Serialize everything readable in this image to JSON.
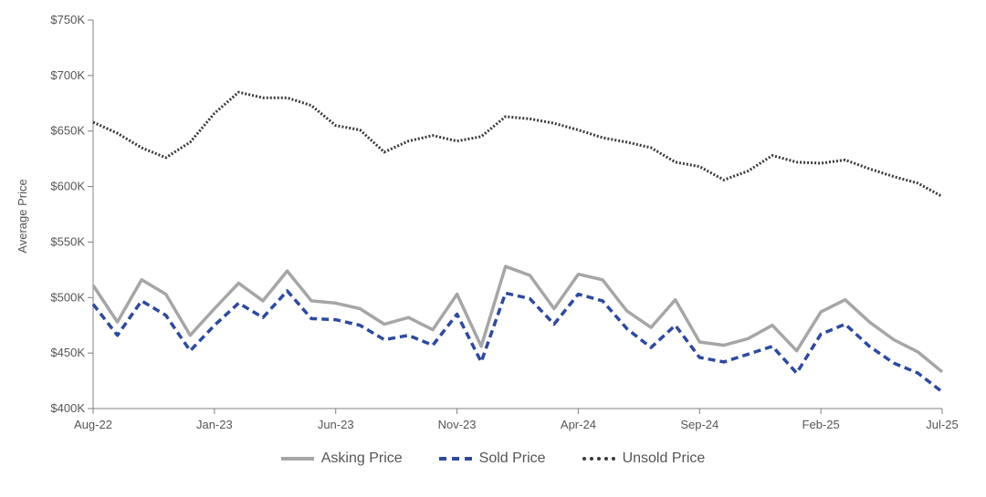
{
  "chart_data": {
    "type": "line",
    "title": "",
    "xlabel": "",
    "ylabel": "Average Price",
    "ylim": [
      400000,
      750000
    ],
    "y_ticks": [
      "$400K",
      "$450K",
      "$500K",
      "$550K",
      "$600K",
      "$650K",
      "$700K",
      "$750K"
    ],
    "y_tick_values": [
      400000,
      450000,
      500000,
      550000,
      600000,
      650000,
      700000,
      750000
    ],
    "x": [
      "Aug-22",
      "Sep-22",
      "Oct-22",
      "Nov-22",
      "Dec-22",
      "Jan-23",
      "Feb-23",
      "Mar-23",
      "Apr-23",
      "May-23",
      "Jun-23",
      "Jul-23",
      "Aug-23",
      "Sep-23",
      "Oct-23",
      "Nov-23",
      "Dec-23",
      "Jan-24",
      "Feb-24",
      "Mar-24",
      "Apr-24",
      "May-24",
      "Jun-24",
      "Jul-24",
      "Aug-24",
      "Sep-24",
      "Oct-24",
      "Nov-24",
      "Dec-24",
      "Jan-25",
      "Feb-25",
      "Mar-25",
      "Apr-25",
      "May-25",
      "Jun-25",
      "Jul-25"
    ],
    "x_tick_labels": [
      "Aug-22",
      "Jan-23",
      "Jun-23",
      "Nov-23",
      "Apr-24",
      "Sep-24",
      "Feb-25",
      "Jul-25"
    ],
    "x_tick_every": 5,
    "grid": false,
    "legend_position": "bottom",
    "series": [
      {
        "name": "Asking Price",
        "color": "#a6a6a6",
        "style": "solid",
        "values": [
          511000,
          478000,
          516000,
          503000,
          466000,
          490000,
          513000,
          497000,
          524000,
          497000,
          495000,
          490000,
          476000,
          482000,
          471000,
          503000,
          456000,
          528000,
          520000,
          490000,
          521000,
          516000,
          488000,
          473000,
          498000,
          460000,
          457000,
          463000,
          475000,
          452000,
          487000,
          498000,
          478000,
          462000,
          451000,
          433000
        ]
      },
      {
        "name": "Sold Price",
        "color": "#2e4a9e",
        "style": "dashed",
        "values": [
          494000,
          466000,
          497000,
          484000,
          452000,
          475000,
          495000,
          482000,
          506000,
          481000,
          480000,
          475000,
          462000,
          466000,
          457000,
          485000,
          442000,
          504000,
          499000,
          476000,
          503000,
          497000,
          472000,
          455000,
          475000,
          446000,
          442000,
          449000,
          456000,
          432000,
          467000,
          476000,
          456000,
          441000,
          432000,
          415000
        ]
      },
      {
        "name": "Unsold Price",
        "color": "#3a3a3a",
        "style": "dotted",
        "values": [
          658000,
          648000,
          635000,
          626000,
          640000,
          666000,
          685000,
          680000,
          680000,
          673000,
          655000,
          651000,
          631000,
          641000,
          646000,
          641000,
          645000,
          663000,
          661000,
          657000,
          651000,
          644000,
          640000,
          635000,
          622000,
          618000,
          606000,
          614000,
          628000,
          622000,
          621000,
          624000,
          616000,
          609000,
          603000,
          591000
        ]
      }
    ]
  }
}
